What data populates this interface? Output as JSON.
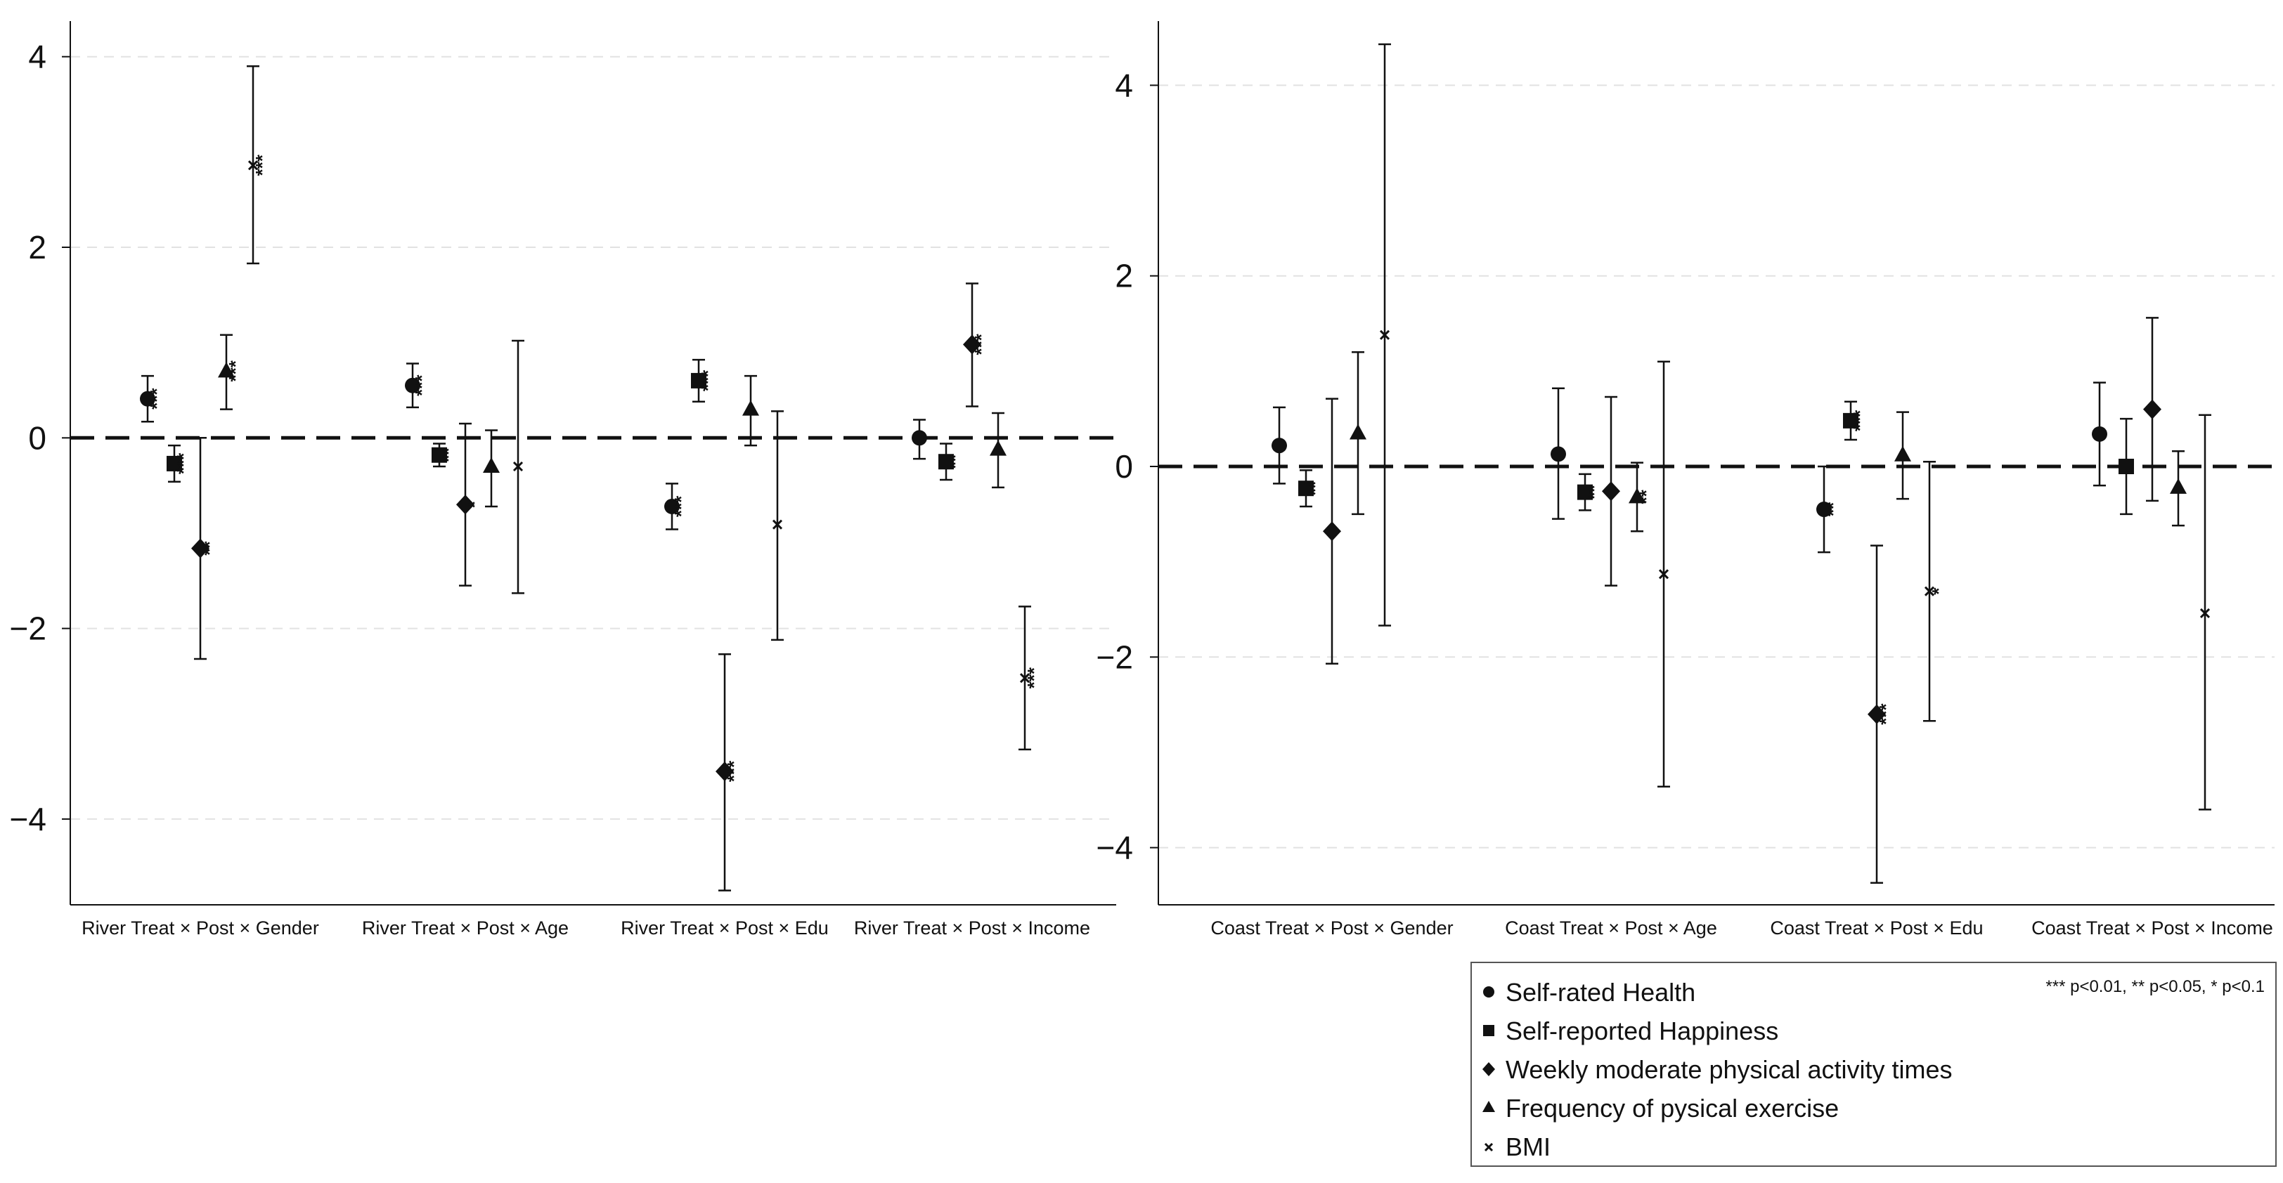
{
  "chart_data": [
    {
      "type": "scatter",
      "panel": "left",
      "title": "",
      "xlabel": "",
      "ylabel": "",
      "ylim": [
        -4.9,
        4.3
      ],
      "yticks": [
        4,
        2,
        0,
        -2,
        -4
      ],
      "ytick_labels": [
        "4",
        "2",
        "0",
        "−2",
        "−4"
      ],
      "grid": true,
      "reference_line": 0,
      "categories": [
        "River Treat × Post × Gender",
        "River Treat × Post × Age",
        "River Treat × Post × Edu",
        "River Treat × Post × Income"
      ],
      "series": [
        {
          "name": "Self-rated Health",
          "marker": "circle",
          "values": [
            0.41,
            0.55,
            -0.72,
            0.0
          ],
          "lower": [
            0.17,
            0.32,
            -0.96,
            -0.22
          ],
          "upper": [
            0.65,
            0.78,
            -0.48,
            0.19
          ],
          "stars": [
            "***",
            "***",
            "***",
            ""
          ]
        },
        {
          "name": "Self-reported Happiness",
          "marker": "square",
          "values": [
            -0.27,
            -0.18,
            0.6,
            -0.25
          ],
          "lower": [
            -0.46,
            -0.3,
            0.38,
            -0.44
          ],
          "upper": [
            -0.08,
            -0.06,
            0.82,
            -0.06
          ],
          "stars": [
            "***",
            "**",
            "***",
            "**"
          ]
        },
        {
          "name": "Weekly moderate physical activity times",
          "marker": "diamond",
          "values": [
            -1.16,
            -0.7,
            -3.5,
            0.98
          ],
          "lower": [
            -2.32,
            -1.55,
            -4.75,
            0.33
          ],
          "upper": [
            0.0,
            0.15,
            -2.27,
            1.62
          ],
          "stars": [
            "**",
            "*",
            "***",
            "***"
          ]
        },
        {
          "name": "Frequency of pysical exercise",
          "marker": "triangle",
          "values": [
            0.7,
            -0.3,
            0.3,
            -0.12
          ],
          "lower": [
            0.3,
            -0.72,
            -0.08,
            -0.52
          ],
          "upper": [
            1.08,
            0.08,
            0.65,
            0.26
          ],
          "stars": [
            "***",
            "",
            "",
            ""
          ]
        },
        {
          "name": "BMI",
          "marker": "x",
          "values": [
            2.86,
            -0.3,
            -0.91,
            -2.52
          ],
          "lower": [
            1.83,
            -1.63,
            -2.12,
            -3.27
          ],
          "upper": [
            3.9,
            1.02,
            0.28,
            -1.77
          ],
          "stars": [
            "***",
            "",
            "",
            "***"
          ]
        }
      ]
    },
    {
      "type": "scatter",
      "panel": "right",
      "title": "",
      "xlabel": "",
      "ylabel": "",
      "ylim": [
        -4.6,
        4.6
      ],
      "yticks": [
        4,
        2,
        0,
        -2,
        -4
      ],
      "ytick_labels": [
        "4",
        "2",
        "0",
        "−2",
        "−4"
      ],
      "grid": true,
      "reference_line": 0,
      "categories": [
        "Coast Treat × Post × Gender",
        "Coast Treat × Post × Age",
        "Coast  Treat × Post × Edu",
        "Coast Treat × Post × Income"
      ],
      "series": [
        {
          "name": "Self-rated Health",
          "marker": "circle",
          "values": [
            0.22,
            0.13,
            -0.45,
            0.34
          ],
          "lower": [
            -0.18,
            -0.55,
            -0.9,
            -0.2
          ],
          "upper": [
            0.62,
            0.82,
            0.0,
            0.88
          ],
          "stars": [
            "",
            "",
            "**",
            ""
          ]
        },
        {
          "name": "Self-reported Happiness",
          "marker": "square",
          "values": [
            -0.23,
            -0.27,
            0.48,
            0.0
          ],
          "lower": [
            -0.42,
            -0.46,
            0.28,
            -0.5
          ],
          "upper": [
            -0.04,
            -0.08,
            0.68,
            0.5
          ],
          "stars": [
            "**",
            "**",
            "***",
            ""
          ]
        },
        {
          "name": "Weekly moderate physical activity times",
          "marker": "diamond",
          "values": [
            -0.68,
            -0.26,
            -2.6,
            0.6
          ],
          "lower": [
            -2.07,
            -1.25,
            -4.37,
            -0.36
          ],
          "upper": [
            0.71,
            0.73,
            -0.83,
            1.56
          ],
          "stars": [
            "",
            "",
            "***",
            ""
          ]
        },
        {
          "name": "Frequency of pysical exercise",
          "marker": "triangle",
          "values": [
            0.35,
            -0.32,
            0.12,
            -0.22
          ],
          "lower": [
            -0.5,
            -0.68,
            -0.34,
            -0.62
          ],
          "upper": [
            1.2,
            0.04,
            0.57,
            0.16
          ],
          "stars": [
            "",
            "**",
            "",
            ""
          ]
        },
        {
          "name": "BMI",
          "marker": "x",
          "values": [
            1.38,
            -1.13,
            -1.31,
            -1.54
          ],
          "lower": [
            -1.67,
            -3.36,
            -2.67,
            -3.6
          ],
          "upper": [
            4.43,
            1.1,
            0.05,
            0.54
          ],
          "stars": [
            "",
            "",
            "*",
            ""
          ]
        }
      ]
    }
  ],
  "legend": {
    "placement": "bottom-right",
    "items": [
      {
        "label": "Self-rated Health",
        "marker": "circle"
      },
      {
        "label": "Self-reported Happiness",
        "marker": "square"
      },
      {
        "label": "Weekly moderate physical activity times",
        "marker": "diamond"
      },
      {
        "label": "Frequency of pysical exercise",
        "marker": "triangle"
      },
      {
        "label": "BMI",
        "marker": "x"
      }
    ],
    "note": "*** p<0.01, ** p<0.05, * p<0.1"
  },
  "colors": {
    "ink": "#111111",
    "grid": "#e2e2e2",
    "background": "#ffffff"
  }
}
